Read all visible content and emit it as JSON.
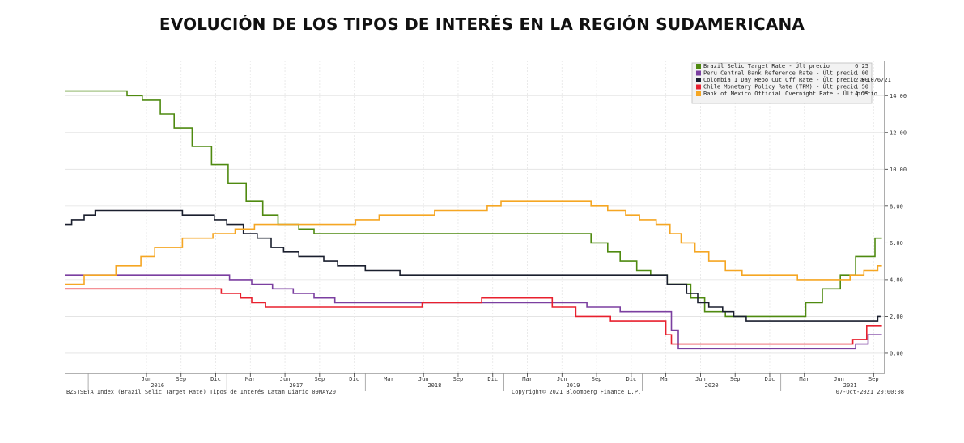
{
  "title": "EVOLUCIÓN DE LOS TIPOS DE INTERÉS EN LA REGIÓN SUDAMERICANA",
  "footer": {
    "left": "BZSTSETA Index (Brazil Selic Target Rate) Tipos de Interés Latam  Diario 09MAY20",
    "center": "Copyright© 2021 Bloomberg Finance L.P.",
    "right": "07-Oct-2021 20:00:08"
  },
  "chart_data": {
    "type": "line",
    "title": "EVOLUCIÓN DE LOS TIPOS DE INTERÉS EN LA REGIÓN SUDAMERICANA",
    "ylim": [
      -1.1,
      15.9
    ],
    "y_ticks": [
      "14.00",
      "12.00",
      "10.00",
      "8.00",
      "6.00",
      "4.00",
      "2.00",
      "0.00"
    ],
    "y_tick_values": [
      14,
      12,
      10,
      8,
      6,
      4,
      2,
      0
    ],
    "x_range": [
      2015.83,
      2021.75
    ],
    "month_ticks": [
      {
        "label": "Jun",
        "t": 2016.42
      },
      {
        "label": "Sep",
        "t": 2016.67
      },
      {
        "label": "Dic",
        "t": 2016.92
      },
      {
        "label": "Mar",
        "t": 2017.17
      },
      {
        "label": "Jun",
        "t": 2017.42
      },
      {
        "label": "Sep",
        "t": 2017.67
      },
      {
        "label": "Dic",
        "t": 2017.92
      },
      {
        "label": "Mar",
        "t": 2018.17
      },
      {
        "label": "Jun",
        "t": 2018.42
      },
      {
        "label": "Sep",
        "t": 2018.67
      },
      {
        "label": "Dic",
        "t": 2018.92
      },
      {
        "label": "Mar",
        "t": 2019.17
      },
      {
        "label": "Jun",
        "t": 2019.42
      },
      {
        "label": "Sep",
        "t": 2019.67
      },
      {
        "label": "Dic",
        "t": 2019.92
      },
      {
        "label": "Mar",
        "t": 2020.17
      },
      {
        "label": "Jun",
        "t": 2020.42
      },
      {
        "label": "Sep",
        "t": 2020.67
      },
      {
        "label": "Dic",
        "t": 2020.92
      },
      {
        "label": "Mar",
        "t": 2021.17
      },
      {
        "label": "Jun",
        "t": 2021.42
      },
      {
        "label": "Sep",
        "t": 2021.67
      }
    ],
    "year_labels": [
      {
        "label": "2016",
        "t": 2016.5
      },
      {
        "label": "2017",
        "t": 2017.5
      },
      {
        "label": "2018",
        "t": 2018.5
      },
      {
        "label": "2019",
        "t": 2019.5
      },
      {
        "label": "2020",
        "t": 2020.5
      },
      {
        "label": "2021",
        "t": 2021.5
      }
    ],
    "year_boundaries": [
      2016.0,
      2017.0,
      2018.0,
      2019.0,
      2020.0,
      2021.0
    ],
    "grid": true,
    "legend_position": "top-right",
    "series": [
      {
        "name": "Brazil Selic Target Rate - Últ precio",
        "last": "6.25",
        "color": "#4f8a10",
        "points": [
          [
            2015.83,
            14.25
          ],
          [
            2016.28,
            14.25
          ],
          [
            2016.28,
            14.0
          ],
          [
            2016.39,
            14.0
          ],
          [
            2016.39,
            13.75
          ],
          [
            2016.52,
            13.75
          ],
          [
            2016.52,
            13.0
          ],
          [
            2016.62,
            13.0
          ],
          [
            2016.62,
            12.25
          ],
          [
            2016.75,
            12.25
          ],
          [
            2016.75,
            11.25
          ],
          [
            2016.89,
            11.25
          ],
          [
            2016.89,
            10.25
          ],
          [
            2017.01,
            10.25
          ],
          [
            2017.01,
            9.25
          ],
          [
            2017.14,
            9.25
          ],
          [
            2017.14,
            8.25
          ],
          [
            2017.26,
            8.25
          ],
          [
            2017.26,
            7.5
          ],
          [
            2017.37,
            7.5
          ],
          [
            2017.37,
            7.0
          ],
          [
            2017.52,
            7.0
          ],
          [
            2017.52,
            6.75
          ],
          [
            2017.63,
            6.75
          ],
          [
            2017.63,
            6.5
          ],
          [
            2019.63,
            6.5
          ],
          [
            2019.63,
            6.0
          ],
          [
            2019.75,
            6.0
          ],
          [
            2019.75,
            5.5
          ],
          [
            2019.84,
            5.5
          ],
          [
            2019.84,
            5.0
          ],
          [
            2019.96,
            5.0
          ],
          [
            2019.96,
            4.5
          ],
          [
            2020.06,
            4.5
          ],
          [
            2020.06,
            4.25
          ],
          [
            2020.18,
            4.25
          ],
          [
            2020.18,
            3.75
          ],
          [
            2020.35,
            3.75
          ],
          [
            2020.35,
            3.0
          ],
          [
            2020.45,
            3.0
          ],
          [
            2020.45,
            2.25
          ],
          [
            2020.6,
            2.25
          ],
          [
            2020.6,
            2.0
          ],
          [
            2021.18,
            2.0
          ],
          [
            2021.18,
            2.75
          ],
          [
            2021.3,
            2.75
          ],
          [
            2021.3,
            3.5
          ],
          [
            2021.43,
            3.5
          ],
          [
            2021.43,
            4.25
          ],
          [
            2021.54,
            4.25
          ],
          [
            2021.54,
            5.25
          ],
          [
            2021.68,
            5.25
          ],
          [
            2021.68,
            6.25
          ],
          [
            2021.73,
            6.25
          ]
        ]
      },
      {
        "name": "Peru Central Bank Reference Rate - Últ precio",
        "last": "1.00",
        "color": "#7b3fa0",
        "points": [
          [
            2015.83,
            4.25
          ],
          [
            2017.02,
            4.25
          ],
          [
            2017.02,
            4.0
          ],
          [
            2017.18,
            4.0
          ],
          [
            2017.18,
            3.75
          ],
          [
            2017.33,
            3.75
          ],
          [
            2017.33,
            3.5
          ],
          [
            2017.48,
            3.5
          ],
          [
            2017.48,
            3.25
          ],
          [
            2017.63,
            3.25
          ],
          [
            2017.63,
            3.0
          ],
          [
            2017.78,
            3.0
          ],
          [
            2017.78,
            2.75
          ],
          [
            2019.6,
            2.75
          ],
          [
            2019.6,
            2.5
          ],
          [
            2019.84,
            2.5
          ],
          [
            2019.84,
            2.25
          ],
          [
            2020.21,
            2.25
          ],
          [
            2020.21,
            1.25
          ],
          [
            2020.26,
            1.25
          ],
          [
            2020.26,
            0.25
          ],
          [
            2021.54,
            0.25
          ],
          [
            2021.54,
            0.5
          ],
          [
            2021.63,
            0.5
          ],
          [
            2021.63,
            1.0
          ],
          [
            2021.73,
            1.0
          ]
        ]
      },
      {
        "name": "Colombia 1 Day Repo Cut Off Rate - Últ precio a 10/6/21",
        "last": "2.00",
        "color": "#1a1f2e",
        "points": [
          [
            2015.83,
            7.0
          ],
          [
            2015.88,
            7.0
          ],
          [
            2015.88,
            7.25
          ],
          [
            2015.97,
            7.25
          ],
          [
            2015.97,
            7.5
          ],
          [
            2016.05,
            7.5
          ],
          [
            2016.05,
            7.75
          ],
          [
            2016.68,
            7.75
          ],
          [
            2016.68,
            7.5
          ],
          [
            2016.91,
            7.5
          ],
          [
            2016.91,
            7.25
          ],
          [
            2017.0,
            7.25
          ],
          [
            2017.0,
            7.0
          ],
          [
            2017.12,
            7.0
          ],
          [
            2017.12,
            6.5
          ],
          [
            2017.22,
            6.5
          ],
          [
            2017.22,
            6.25
          ],
          [
            2017.32,
            6.25
          ],
          [
            2017.32,
            5.75
          ],
          [
            2017.41,
            5.75
          ],
          [
            2017.41,
            5.5
          ],
          [
            2017.52,
            5.5
          ],
          [
            2017.52,
            5.25
          ],
          [
            2017.7,
            5.25
          ],
          [
            2017.7,
            5.0
          ],
          [
            2017.8,
            5.0
          ],
          [
            2017.8,
            4.75
          ],
          [
            2018.0,
            4.75
          ],
          [
            2018.0,
            4.5
          ],
          [
            2018.25,
            4.5
          ],
          [
            2018.25,
            4.25
          ],
          [
            2020.18,
            4.25
          ],
          [
            2020.18,
            3.75
          ],
          [
            2020.32,
            3.75
          ],
          [
            2020.32,
            3.25
          ],
          [
            2020.4,
            3.25
          ],
          [
            2020.4,
            2.75
          ],
          [
            2020.48,
            2.75
          ],
          [
            2020.48,
            2.5
          ],
          [
            2020.58,
            2.5
          ],
          [
            2020.58,
            2.25
          ],
          [
            2020.66,
            2.25
          ],
          [
            2020.66,
            2.0
          ],
          [
            2020.75,
            2.0
          ],
          [
            2020.75,
            1.75
          ],
          [
            2021.7,
            1.75
          ],
          [
            2021.7,
            2.0
          ],
          [
            2021.72,
            2.0
          ]
        ]
      },
      {
        "name": "Chile Monetary Policy Rate (TPM) - Últ precio",
        "last": "1.50",
        "color": "#e8202e",
        "points": [
          [
            2015.83,
            3.5
          ],
          [
            2016.96,
            3.5
          ],
          [
            2016.96,
            3.25
          ],
          [
            2017.1,
            3.25
          ],
          [
            2017.1,
            3.0
          ],
          [
            2017.18,
            3.0
          ],
          [
            2017.18,
            2.75
          ],
          [
            2017.28,
            2.75
          ],
          [
            2017.28,
            2.5
          ],
          [
            2018.41,
            2.5
          ],
          [
            2018.41,
            2.75
          ],
          [
            2018.84,
            2.75
          ],
          [
            2018.84,
            3.0
          ],
          [
            2019.35,
            3.0
          ],
          [
            2019.35,
            2.5
          ],
          [
            2019.52,
            2.5
          ],
          [
            2019.52,
            2.0
          ],
          [
            2019.77,
            2.0
          ],
          [
            2019.77,
            1.75
          ],
          [
            2020.17,
            1.75
          ],
          [
            2020.17,
            1.0
          ],
          [
            2020.21,
            1.0
          ],
          [
            2020.21,
            0.5
          ],
          [
            2021.52,
            0.5
          ],
          [
            2021.52,
            0.75
          ],
          [
            2021.62,
            0.75
          ],
          [
            2021.62,
            1.5
          ],
          [
            2021.73,
            1.5
          ]
        ]
      },
      {
        "name": "Bank of Mexico Official Overnight Rate - Últ precio",
        "last": "4.75",
        "color": "#f5a623",
        "points": [
          [
            2015.83,
            3.75
          ],
          [
            2015.97,
            3.75
          ],
          [
            2015.97,
            4.25
          ],
          [
            2016.2,
            4.25
          ],
          [
            2016.2,
            4.75
          ],
          [
            2016.38,
            4.75
          ],
          [
            2016.38,
            5.25
          ],
          [
            2016.48,
            5.25
          ],
          [
            2016.48,
            5.75
          ],
          [
            2016.68,
            5.75
          ],
          [
            2016.68,
            6.25
          ],
          [
            2016.9,
            6.25
          ],
          [
            2016.9,
            6.5
          ],
          [
            2017.06,
            6.5
          ],
          [
            2017.06,
            6.75
          ],
          [
            2017.2,
            6.75
          ],
          [
            2017.2,
            7.0
          ],
          [
            2017.93,
            7.0
          ],
          [
            2017.93,
            7.25
          ],
          [
            2018.1,
            7.25
          ],
          [
            2018.1,
            7.5
          ],
          [
            2018.5,
            7.5
          ],
          [
            2018.5,
            7.75
          ],
          [
            2018.88,
            7.75
          ],
          [
            2018.88,
            8.0
          ],
          [
            2018.98,
            8.0
          ],
          [
            2018.98,
            8.25
          ],
          [
            2019.63,
            8.25
          ],
          [
            2019.63,
            8.0
          ],
          [
            2019.75,
            8.0
          ],
          [
            2019.75,
            7.75
          ],
          [
            2019.88,
            7.75
          ],
          [
            2019.88,
            7.5
          ],
          [
            2019.98,
            7.5
          ],
          [
            2019.98,
            7.25
          ],
          [
            2020.1,
            7.25
          ],
          [
            2020.1,
            7.0
          ],
          [
            2020.2,
            7.0
          ],
          [
            2020.2,
            6.5
          ],
          [
            2020.28,
            6.5
          ],
          [
            2020.28,
            6.0
          ],
          [
            2020.38,
            6.0
          ],
          [
            2020.38,
            5.5
          ],
          [
            2020.48,
            5.5
          ],
          [
            2020.48,
            5.0
          ],
          [
            2020.6,
            5.0
          ],
          [
            2020.6,
            4.5
          ],
          [
            2020.72,
            4.5
          ],
          [
            2020.72,
            4.25
          ],
          [
            2021.12,
            4.25
          ],
          [
            2021.12,
            4.0
          ],
          [
            2021.5,
            4.0
          ],
          [
            2021.5,
            4.25
          ],
          [
            2021.6,
            4.25
          ],
          [
            2021.6,
            4.5
          ],
          [
            2021.7,
            4.5
          ],
          [
            2021.7,
            4.75
          ],
          [
            2021.73,
            4.75
          ]
        ]
      }
    ]
  }
}
